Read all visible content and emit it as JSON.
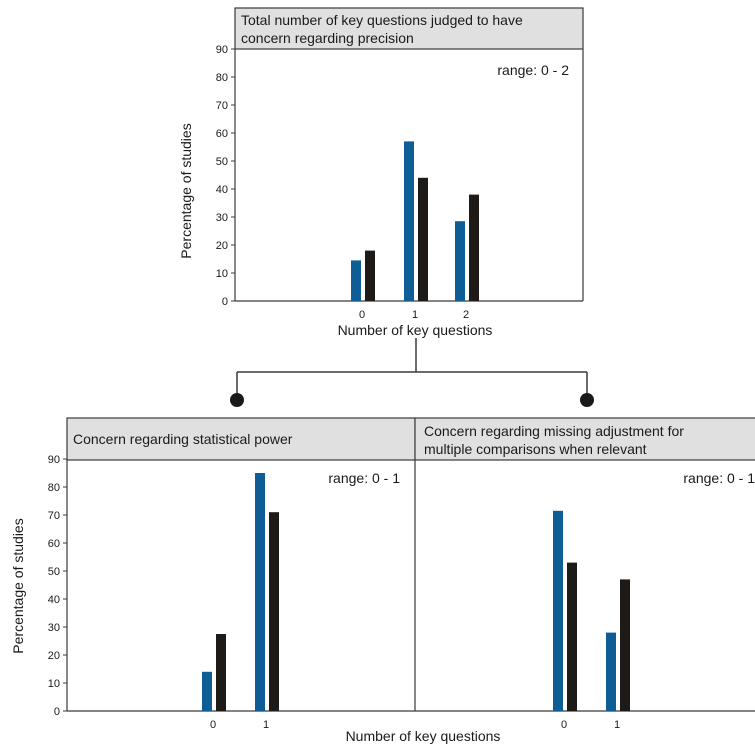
{
  "colors": {
    "series_a": "#0e5e95",
    "series_b": "#1e1a18",
    "title_box": "#e0e0e0",
    "line": "#3a3a3a"
  },
  "chart_data": [
    {
      "type": "bar",
      "title": "Total number of key questions judged to have concern regarding precision",
      "title_lines": [
        "Total number of key questions judged to have",
        "concern regarding precision"
      ],
      "range_note": "range: 0 - 2",
      "ylabel": "Percentage of studies",
      "xlabel": "Number of key questions",
      "yticks": [
        "0",
        "10",
        "20",
        "30",
        "40",
        "50",
        "60",
        "70",
        "80",
        "90"
      ],
      "ylim": [
        0,
        90
      ],
      "categories": [
        "0",
        "1",
        "2"
      ],
      "series": [
        {
          "values": [
            14.5,
            57,
            28.5
          ]
        },
        {
          "values": [
            18,
            44,
            38
          ]
        }
      ]
    },
    {
      "type": "bar",
      "title": "Concern regarding statistical power",
      "title_lines": [
        "Concern regarding statistical power"
      ],
      "range_note": "range: 0 - 1",
      "ylabel": "Percentage of studies",
      "xlabel": "Number of key questions",
      "yticks": [
        "0",
        "10",
        "20",
        "30",
        "40",
        "50",
        "60",
        "70",
        "80",
        "90"
      ],
      "ylim": [
        0,
        90
      ],
      "categories": [
        "0",
        "1"
      ],
      "series": [
        {
          "values": [
            14,
            85
          ]
        },
        {
          "values": [
            27.5,
            71
          ]
        }
      ]
    },
    {
      "type": "bar",
      "title": "Concern regarding missing adjustment for multiple comparisons when relevant",
      "title_lines": [
        "Concern regarding missing adjustment for",
        "multiple comparisons when relevant"
      ],
      "range_note": "range: 0 - 1",
      "categories": [
        "0",
        "1"
      ],
      "ylim": [
        0,
        90
      ],
      "series": [
        {
          "values": [
            71.5,
            28
          ]
        },
        {
          "values": [
            53,
            47
          ]
        }
      ]
    }
  ]
}
